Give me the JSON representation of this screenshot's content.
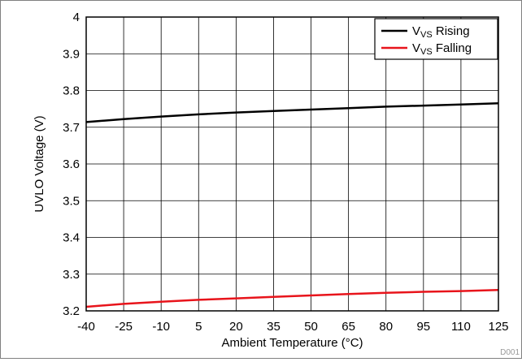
{
  "chart_data": {
    "type": "line",
    "xlabel": "Ambient Temperature (°C)",
    "ylabel": "UVLO Voltage (V)",
    "xlim": [
      -40,
      125
    ],
    "ylim": [
      3.2,
      4.0
    ],
    "x_ticks": [
      "-40",
      "-25",
      "-10",
      "5",
      "20",
      "35",
      "50",
      "65",
      "80",
      "95",
      "110",
      "125"
    ],
    "y_ticks": [
      "3.2",
      "3.3",
      "3.4",
      "3.5",
      "3.6",
      "3.7",
      "3.8",
      "3.9",
      "4"
    ],
    "grid": true,
    "legend_position": "top-right",
    "series": [
      {
        "name": "V_VS Rising",
        "legend_main": "V",
        "legend_sub": "VS",
        "legend_rest": " Rising",
        "color": "#000000",
        "x": [
          -40,
          -25,
          -10,
          5,
          20,
          35,
          50,
          65,
          80,
          95,
          110,
          125
        ],
        "y": [
          3.714,
          3.722,
          3.729,
          3.735,
          3.74,
          3.744,
          3.748,
          3.752,
          3.756,
          3.759,
          3.762,
          3.765
        ]
      },
      {
        "name": "V_VS Falling",
        "legend_main": "V",
        "legend_sub": "VS",
        "legend_rest": " Falling",
        "color": "#e8141b",
        "x": [
          -40,
          -25,
          -10,
          5,
          20,
          35,
          50,
          65,
          80,
          95,
          110,
          125
        ],
        "y": [
          3.211,
          3.219,
          3.225,
          3.23,
          3.234,
          3.238,
          3.242,
          3.246,
          3.249,
          3.252,
          3.254,
          3.257
        ]
      }
    ],
    "figure_code": "D001"
  }
}
